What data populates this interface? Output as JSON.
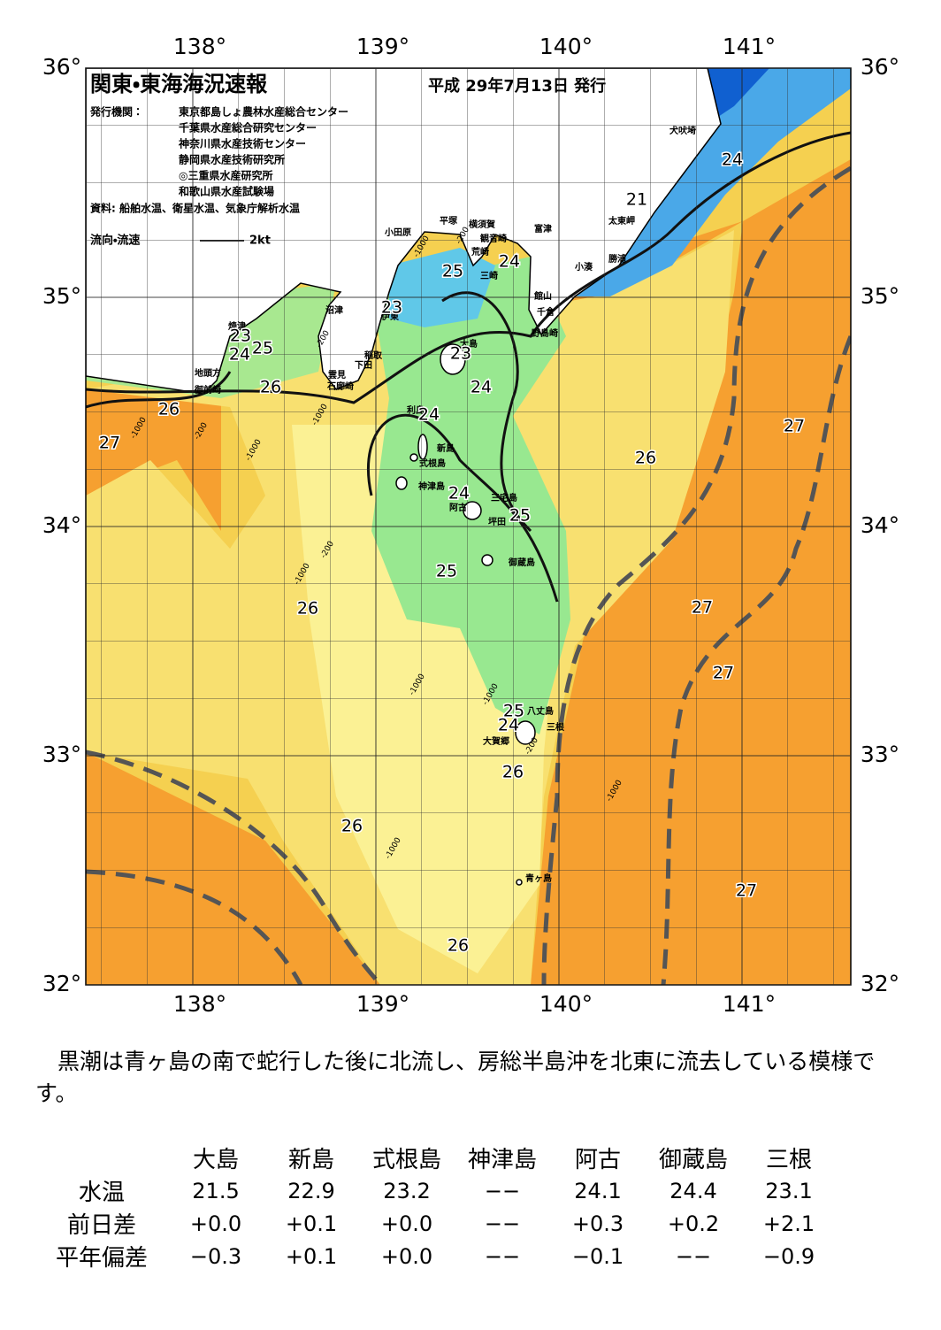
{
  "header": {
    "title": "関東・東海海況速報",
    "date": "平成 29年7月13日 発行",
    "issuer_label": "発行機関：",
    "issuers": [
      "東京都島しょ農林水産総合センター",
      "千葉県水産総合研究センター",
      "神奈川県水産技術センター",
      "静岡県水産技術研究所",
      "◎三重県水産研究所",
      "和歌山県水産試験場"
    ],
    "source": "資料: 船舶水温、衛星水温、気象庁解析水温",
    "legend_label": "流向・流速",
    "legend_unit": "2kt"
  },
  "map": {
    "lon_ticks": [
      {
        "value": 138,
        "label": "138°"
      },
      {
        "value": 139,
        "label": "139°"
      },
      {
        "value": 140,
        "label": "140°"
      },
      {
        "value": 141,
        "label": "141°"
      }
    ],
    "lat_ticks": [
      {
        "value": 36,
        "label": "36°"
      },
      {
        "value": 35,
        "label": "35°"
      },
      {
        "value": 34,
        "label": "34°"
      },
      {
        "value": 33,
        "label": "33°"
      },
      {
        "value": 32,
        "label": "32°"
      }
    ],
    "places": [
      "犬吠埼",
      "太東岬",
      "勝浦",
      "小湊",
      "富津",
      "横須賀",
      "平塚",
      "小田原",
      "観音崎",
      "荒崎",
      "三崎",
      "館山",
      "千倉",
      "野島崎",
      "沼津",
      "伊東",
      "焼津",
      "稲取",
      "下田",
      "雲見",
      "石廊崎",
      "地頭方",
      "御前崎",
      "大島",
      "利島",
      "新島",
      "式根島",
      "神津島",
      "三宅島",
      "阿古",
      "坪田",
      "御蔵島",
      "八丈島",
      "三根",
      "大賀郷",
      "青ヶ島"
    ],
    "isotherm_labels": [
      "24",
      "21",
      "24",
      "25",
      "23",
      "23",
      "24",
      "25",
      "23",
      "24",
      "26",
      "26",
      "24",
      "27",
      "27",
      "26",
      "24",
      "25",
      "25",
      "26",
      "27",
      "27",
      "25",
      "24",
      "26",
      "26",
      "27",
      "26"
    ],
    "depth_labels": [
      "-200",
      "-1000",
      "-200",
      "-1000",
      "-1000",
      "-200",
      "-1000",
      "-1000",
      "-200",
      "-1000",
      "-1000",
      "-200",
      "-1000",
      "-1000"
    ]
  },
  "description": "黒潮は青ヶ島の南で蛇行した後に北流し、房総半島沖を北東に流去している模様です。",
  "table": {
    "columns": [
      "大島",
      "新島",
      "式根島",
      "神津島",
      "阿古",
      "御蔵島",
      "三根"
    ],
    "rows": [
      {
        "label": "水温",
        "cells": [
          "21.5",
          "22.9",
          "23.2",
          "−−",
          "24.1",
          "24.4",
          "23.1"
        ]
      },
      {
        "label": "前日差",
        "cells": [
          "+0.0",
          "+0.1",
          "+0.0",
          "−−",
          "+0.3",
          "+0.2",
          "+2.1"
        ]
      },
      {
        "label": "平年偏差",
        "cells": [
          "−0.3",
          "+0.1",
          "+0.0",
          "−−",
          "−0.1",
          "−−",
          "−0.9"
        ]
      }
    ]
  }
}
